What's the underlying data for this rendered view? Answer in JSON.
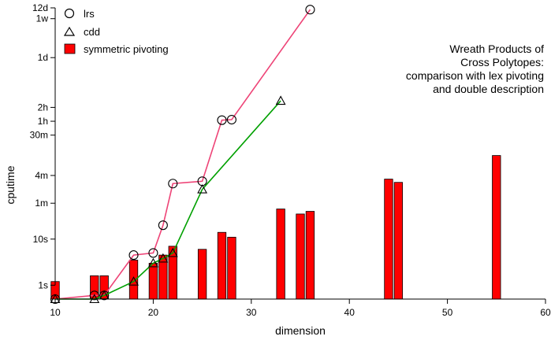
{
  "chart_data": {
    "type": "bar",
    "xlabel": "dimension",
    "ylabel": "cputime",
    "xlim": [
      10,
      60
    ],
    "y_scale": "log",
    "y_unit": "seconds",
    "ylim": [
      0.5,
      1036800
    ],
    "x_ticks": [
      10,
      20,
      30,
      40,
      50,
      60
    ],
    "y_ticks": [
      {
        "label": "1s",
        "value": 1
      },
      {
        "label": "10s",
        "value": 10
      },
      {
        "label": "1m",
        "value": 60
      },
      {
        "label": "4m",
        "value": 240
      },
      {
        "label": "30m",
        "value": 1800
      },
      {
        "label": "1h",
        "value": 3600
      },
      {
        "label": "2h",
        "value": 7200
      },
      {
        "label": "1d",
        "value": 86400
      },
      {
        "label": "1w",
        "value": 604800
      },
      {
        "label": "12d",
        "value": 1036800
      }
    ],
    "legend_position": "top-left",
    "annotation_lines": [
      "Wreath Products of",
      "Cross Polytopes:",
      "comparison with lex pivoting",
      "and double description"
    ],
    "series": [
      {
        "name": "lrs",
        "kind": "line",
        "marker": "circle",
        "color": "#ee4477",
        "x": [
          10,
          14,
          15,
          18,
          20,
          21,
          22,
          25,
          27,
          28,
          36
        ],
        "y": [
          0.5,
          0.6,
          0.6,
          4.5,
          5,
          20,
          160,
          180,
          3800,
          3900,
          950000
        ]
      },
      {
        "name": "cdd",
        "kind": "line",
        "marker": "triangle",
        "color": "#00a000",
        "x": [
          10,
          14,
          15,
          18,
          20,
          21,
          22,
          25,
          33
        ],
        "y": [
          0.5,
          0.5,
          0.6,
          1.2,
          3,
          3.8,
          5,
          120,
          10000
        ]
      },
      {
        "name": "symmetric pivoting",
        "kind": "bar",
        "color": "#ff0000",
        "x": [
          10,
          14,
          15,
          18,
          20,
          21,
          22,
          25,
          27,
          28,
          33,
          35,
          36,
          44,
          45,
          55
        ],
        "y": [
          1.2,
          1.6,
          1.6,
          3.5,
          3,
          4.5,
          7,
          6,
          14,
          11,
          45,
          35,
          40,
          200,
          170,
          650
        ]
      }
    ]
  }
}
